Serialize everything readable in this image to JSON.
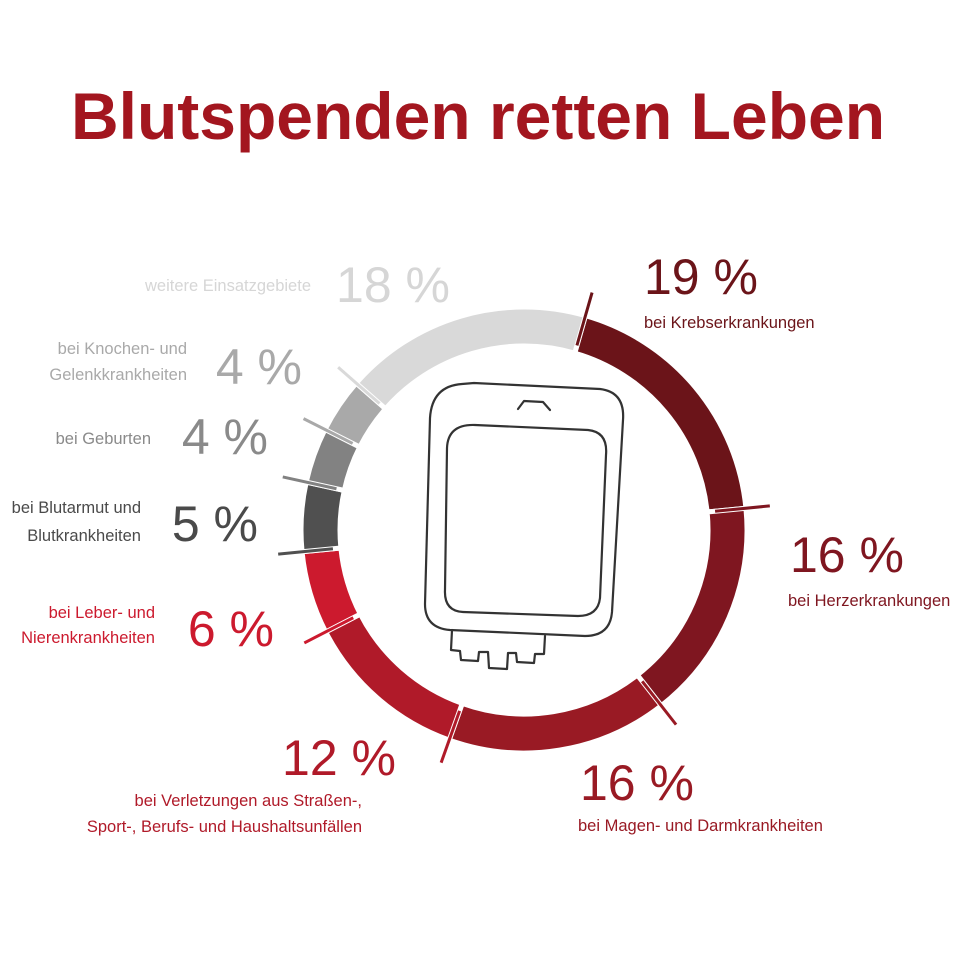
{
  "title": "Blutspenden retten Leben",
  "chart_data": {
    "type": "pie",
    "variant": "donut",
    "title": "Blutspenden retten Leben",
    "direction": "clockwise, starting at top-right",
    "segments": [
      {
        "value": 19,
        "percent_label": "19 %",
        "label": [
          "bei Krebserkrankungen"
        ],
        "color": "#6b1419"
      },
      {
        "value": 16,
        "percent_label": "16 %",
        "label": [
          "bei Herzerkrankungen"
        ],
        "color": "#7f1620"
      },
      {
        "value": 16,
        "percent_label": "16 %",
        "label": [
          "bei Magen- und Darmkrankheiten"
        ],
        "color": "#991a24"
      },
      {
        "value": 12,
        "percent_label": "12 %",
        "label": [
          "bei Verletzungen aus Straßen-,",
          "Sport-, Berufs- und Haushaltsunfällen"
        ],
        "color": "#b01a29"
      },
      {
        "value": 6,
        "percent_label": "6 %",
        "label": [
          "bei Leber- und",
          "Nierenkrankheiten"
        ],
        "color": "#cc1a2e"
      },
      {
        "value": 5,
        "percent_label": "5 %",
        "label": [
          "bei Blutarmut und",
          "Blutkrankheiten"
        ],
        "color": "#505050"
      },
      {
        "value": 4,
        "percent_label": "4 %",
        "label": [
          "bei Geburten"
        ],
        "color": "#828282"
      },
      {
        "value": 4,
        "percent_label": "4 %",
        "label": [
          "bei Knochen- und",
          "Gelenkkrankheiten"
        ],
        "color": "#a9a9a9"
      },
      {
        "value": 18,
        "percent_label": "18 %",
        "label": [
          "weitere Einsatzgebiete"
        ],
        "color": "#d9d9d9"
      }
    ],
    "center_icon": "blood-bag-icon"
  },
  "colors": {
    "title": "#a3161f",
    "gap_line": "#ffffff"
  }
}
